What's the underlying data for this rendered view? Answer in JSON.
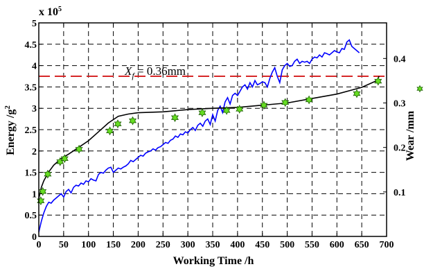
{
  "chart_data": {
    "type": "line",
    "xlabel": "Working Time /h",
    "ylabel_left": "Energy /g",
    "ylabel_left_sup": "2",
    "ylabel_right": "Wear /mm",
    "y_exponent_base": "x 10",
    "y_exponent_power": "5",
    "grid": true,
    "xlim": [
      0,
      700
    ],
    "ylim_left": [
      0,
      5
    ],
    "ylim_right": [
      0,
      0.48
    ],
    "x_ticks": [
      "0",
      "50",
      "100",
      "150",
      "200",
      "250",
      "300",
      "350",
      "400",
      "450",
      "500",
      "550",
      "600",
      "650",
      "700"
    ],
    "y_left_ticks": [
      "0",
      "0.5",
      "1",
      "1.5",
      "2",
      "2.5",
      "3",
      "3.5",
      "4",
      "4.5",
      "5"
    ],
    "y_right_ticks": [
      "0.1",
      "0.2",
      "0.3",
      "0.4"
    ],
    "threshold": {
      "label_var": "X",
      "label_sub": "f",
      "label_value": " = 0.36mm",
      "y_right": 0.36,
      "color": "#d62728"
    },
    "series": [
      {
        "axis": "left",
        "color": "#0000ff",
        "points": [
          [
            0,
            0.1
          ],
          [
            5,
            0.35
          ],
          [
            10,
            0.55
          ],
          [
            15,
            0.7
          ],
          [
            20,
            0.8
          ],
          [
            25,
            0.78
          ],
          [
            30,
            0.85
          ],
          [
            35,
            0.9
          ],
          [
            40,
            0.95
          ],
          [
            45,
            1.0
          ],
          [
            50,
            0.92
          ],
          [
            55,
            1.05
          ],
          [
            60,
            1.1
          ],
          [
            65,
            1.02
          ],
          [
            70,
            1.15
          ],
          [
            75,
            1.2
          ],
          [
            80,
            1.18
          ],
          [
            85,
            1.25
          ],
          [
            90,
            1.22
          ],
          [
            95,
            1.3
          ],
          [
            100,
            1.28
          ],
          [
            105,
            1.35
          ],
          [
            110,
            1.32
          ],
          [
            115,
            1.3
          ],
          [
            120,
            1.45
          ],
          [
            125,
            1.5
          ],
          [
            130,
            1.48
          ],
          [
            135,
            1.55
          ],
          [
            140,
            1.6
          ],
          [
            145,
            1.62
          ],
          [
            150,
            1.5
          ],
          [
            155,
            1.55
          ],
          [
            160,
            1.6
          ],
          [
            165,
            1.58
          ],
          [
            170,
            1.62
          ],
          [
            175,
            1.65
          ],
          [
            180,
            1.7
          ],
          [
            185,
            1.78
          ],
          [
            190,
            1.75
          ],
          [
            195,
            1.8
          ],
          [
            200,
            1.85
          ],
          [
            205,
            1.9
          ],
          [
            210,
            1.88
          ],
          [
            215,
            1.95
          ],
          [
            220,
            1.98
          ],
          [
            225,
            2.0
          ],
          [
            230,
            2.05
          ],
          [
            235,
            2.02
          ],
          [
            240,
            2.08
          ],
          [
            245,
            2.1
          ],
          [
            250,
            2.15
          ],
          [
            255,
            2.2
          ],
          [
            260,
            2.18
          ],
          [
            265,
            2.25
          ],
          [
            270,
            2.28
          ],
          [
            275,
            2.35
          ],
          [
            280,
            2.32
          ],
          [
            285,
            2.4
          ],
          [
            290,
            2.38
          ],
          [
            295,
            2.45
          ],
          [
            300,
            2.42
          ],
          [
            305,
            2.5
          ],
          [
            310,
            2.55
          ],
          [
            315,
            2.48
          ],
          [
            320,
            2.6
          ],
          [
            325,
            2.65
          ],
          [
            330,
            2.58
          ],
          [
            335,
            2.7
          ],
          [
            340,
            2.75
          ],
          [
            345,
            2.62
          ],
          [
            350,
            2.85
          ],
          [
            355,
            2.7
          ],
          [
            360,
            2.95
          ],
          [
            365,
            3.05
          ],
          [
            370,
            2.9
          ],
          [
            375,
            3.15
          ],
          [
            380,
            3.25
          ],
          [
            385,
            3.1
          ],
          [
            390,
            3.3
          ],
          [
            395,
            3.35
          ],
          [
            400,
            3.3
          ],
          [
            405,
            3.4
          ],
          [
            410,
            3.5
          ],
          [
            415,
            3.55
          ],
          [
            420,
            3.45
          ],
          [
            425,
            3.6
          ],
          [
            430,
            3.5
          ],
          [
            435,
            3.65
          ],
          [
            440,
            3.55
          ],
          [
            445,
            3.58
          ],
          [
            450,
            3.62
          ],
          [
            455,
            3.6
          ],
          [
            460,
            3.5
          ],
          [
            465,
            3.7
          ],
          [
            470,
            3.85
          ],
          [
            475,
            3.95
          ],
          [
            480,
            3.75
          ],
          [
            485,
            3.6
          ],
          [
            490,
            3.9
          ],
          [
            495,
            4.0
          ],
          [
            500,
            4.05
          ],
          [
            505,
            3.98
          ],
          [
            510,
            4.0
          ],
          [
            515,
            4.1
          ],
          [
            520,
            4.15
          ],
          [
            525,
            4.05
          ],
          [
            530,
            4.1
          ],
          [
            535,
            4.08
          ],
          [
            540,
            4.1
          ],
          [
            545,
            4.05
          ],
          [
            550,
            4.15
          ],
          [
            555,
            4.2
          ],
          [
            560,
            4.18
          ],
          [
            565,
            4.25
          ],
          [
            570,
            4.2
          ],
          [
            575,
            4.3
          ],
          [
            580,
            4.28
          ],
          [
            585,
            4.25
          ],
          [
            590,
            4.3
          ],
          [
            595,
            4.35
          ],
          [
            600,
            4.32
          ],
          [
            605,
            4.3
          ],
          [
            610,
            4.4
          ],
          [
            615,
            4.38
          ],
          [
            620,
            4.55
          ],
          [
            625,
            4.6
          ],
          [
            630,
            4.45
          ],
          [
            635,
            4.4
          ],
          [
            640,
            4.35
          ],
          [
            645,
            4.3
          ]
        ]
      },
      {
        "axis": "right",
        "color": "#000000",
        "points": [
          [
            0,
            0.085
          ],
          [
            5,
            0.11
          ],
          [
            10,
            0.125
          ],
          [
            20,
            0.145
          ],
          [
            30,
            0.16
          ],
          [
            45,
            0.175
          ],
          [
            60,
            0.185
          ],
          [
            80,
            0.2
          ],
          [
            100,
            0.215
          ],
          [
            120,
            0.235
          ],
          [
            140,
            0.255
          ],
          [
            160,
            0.27
          ],
          [
            180,
            0.275
          ],
          [
            200,
            0.278
          ],
          [
            250,
            0.28
          ],
          [
            300,
            0.285
          ],
          [
            350,
            0.288
          ],
          [
            400,
            0.29
          ],
          [
            450,
            0.295
          ],
          [
            500,
            0.3
          ],
          [
            550,
            0.31
          ],
          [
            600,
            0.32
          ],
          [
            650,
            0.335
          ],
          [
            680,
            0.35
          ],
          [
            685,
            0.36
          ]
        ]
      },
      {
        "axis": "right",
        "type": "scatter",
        "color": "#66dd22",
        "points": [
          [
            4,
            0.08
          ],
          [
            8,
            0.101
          ],
          [
            18,
            0.14
          ],
          [
            43,
            0.168
          ],
          [
            52,
            0.175
          ],
          [
            81,
            0.196
          ],
          [
            143,
            0.237
          ],
          [
            159,
            0.253
          ],
          [
            189,
            0.26
          ],
          [
            274,
            0.267
          ],
          [
            329,
            0.278
          ],
          [
            378,
            0.283
          ],
          [
            404,
            0.286
          ],
          [
            453,
            0.295
          ],
          [
            496,
            0.301
          ],
          [
            544,
            0.307
          ],
          [
            640,
            0.321
          ],
          [
            683,
            0.349
          ]
        ]
      }
    ]
  }
}
